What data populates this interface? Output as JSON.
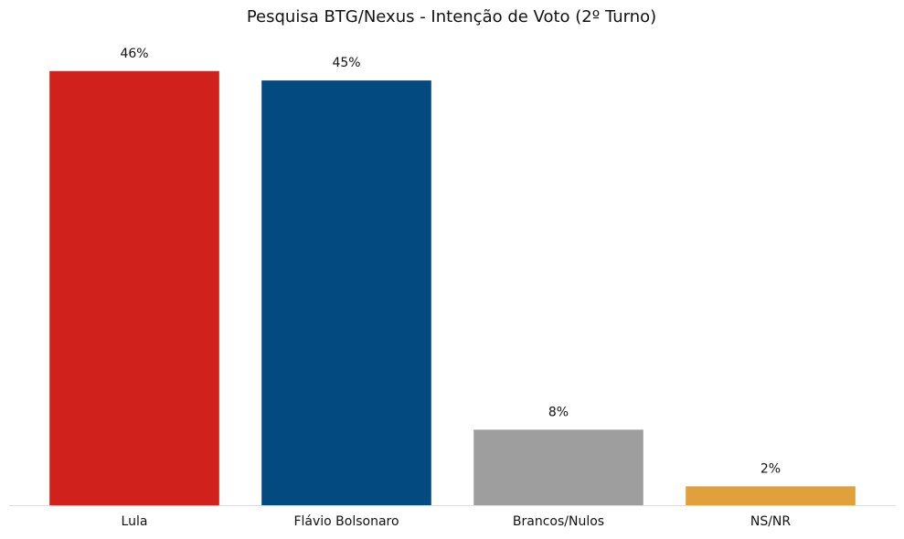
{
  "chart_data": {
    "type": "bar",
    "title": "Pesquisa BTG/Nexus - Intenção de Voto (2º Turno)",
    "categories": [
      "Lula",
      "Flávio Bolsonaro",
      "Brancos/Nulos",
      "NS/NR"
    ],
    "values": [
      46,
      45,
      8,
      2
    ],
    "value_labels": [
      "46%",
      "45%",
      "8%",
      "2%"
    ],
    "colors": [
      "#d0211c",
      "#024a80",
      "#9e9e9e",
      "#e0a03c"
    ],
    "grid": false
  }
}
